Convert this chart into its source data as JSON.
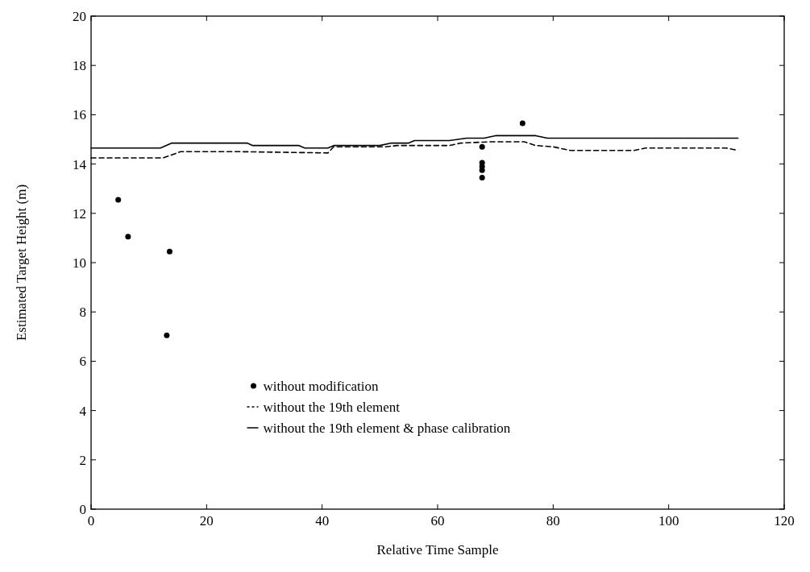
{
  "chart_data": {
    "type": "line",
    "xlabel": "Relative Time Sample",
    "ylabel": "Estimated Target Height (m)",
    "xlim": [
      0,
      120
    ],
    "xticks": [
      0,
      20,
      40,
      60,
      80,
      100,
      120
    ],
    "ylim": [
      0,
      20
    ],
    "yticks": [
      0,
      2,
      4,
      6,
      8,
      10,
      12,
      14,
      16,
      18,
      20
    ],
    "grid": false,
    "legend": "bottom",
    "series": [
      {
        "name": "without modification",
        "type": "scatter",
        "marker": "circle",
        "color": "#000000",
        "x": [
          4.7,
          6.4,
          13.1,
          13.6,
          67.7,
          67.7,
          67.7,
          67.7,
          67.7,
          74.7
        ],
        "values": [
          12.55,
          11.05,
          7.05,
          10.45,
          14.7,
          14.05,
          13.9,
          13.75,
          13.45,
          15.65
        ]
      },
      {
        "name": "without the 19th element",
        "line_style": "dashed",
        "color": "#000000",
        "x": [
          0,
          12.5,
          15.5,
          26,
          41,
          42,
          51,
          53,
          62,
          64,
          69,
          75,
          77,
          80,
          83,
          94,
          96,
          110,
          112
        ],
        "values": [
          14.25,
          14.25,
          14.5,
          14.5,
          14.45,
          14.7,
          14.7,
          14.75,
          14.75,
          14.85,
          14.9,
          14.9,
          14.75,
          14.7,
          14.55,
          14.55,
          14.65,
          14.65,
          14.55
        ]
      },
      {
        "name": "without the 19th element & phase calibration",
        "line_style": "solid",
        "color": "#000000",
        "x": [
          0,
          12,
          14,
          25,
          27,
          28,
          36,
          37,
          41,
          42,
          50,
          52,
          55,
          56,
          62,
          65,
          68,
          70,
          77,
          79,
          112
        ],
        "values": [
          14.65,
          14.65,
          14.85,
          14.85,
          14.85,
          14.75,
          14.75,
          14.65,
          14.65,
          14.75,
          14.75,
          14.85,
          14.85,
          14.95,
          14.95,
          15.05,
          15.05,
          15.15,
          15.15,
          15.05,
          15.05
        ]
      }
    ]
  }
}
